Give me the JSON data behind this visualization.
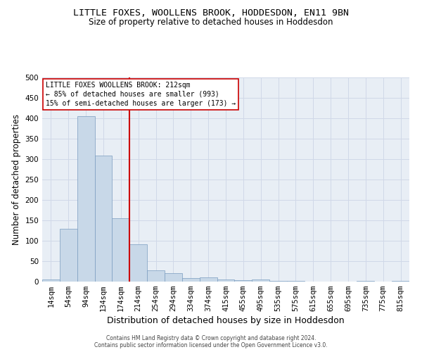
{
  "title": "LITTLE FOXES, WOOLLENS BROOK, HODDESDON, EN11 9BN",
  "subtitle": "Size of property relative to detached houses in Hoddesdon",
  "xlabel": "Distribution of detached houses by size in Hoddesdon",
  "ylabel": "Number of detached properties",
  "footer1": "Contains HM Land Registry data © Crown copyright and database right 2024.",
  "footer2": "Contains public sector information licensed under the Open Government Licence v3.0.",
  "bar_labels": [
    "14sqm",
    "54sqm",
    "94sqm",
    "134sqm",
    "174sqm",
    "214sqm",
    "254sqm",
    "294sqm",
    "334sqm",
    "374sqm",
    "415sqm",
    "455sqm",
    "495sqm",
    "535sqm",
    "575sqm",
    "615sqm",
    "655sqm",
    "695sqm",
    "735sqm",
    "775sqm",
    "815sqm"
  ],
  "bar_values": [
    5,
    130,
    405,
    308,
    155,
    92,
    28,
    20,
    8,
    10,
    5,
    4,
    5,
    1,
    1,
    0,
    0,
    0,
    1,
    0,
    1
  ],
  "bar_color": "#c8d8e8",
  "bar_edge_color": "#7a9cbf",
  "grid_color": "#d0d8e8",
  "bg_color": "#e8eef5",
  "ylim": [
    0,
    500
  ],
  "yticks": [
    0,
    50,
    100,
    150,
    200,
    250,
    300,
    350,
    400,
    450,
    500
  ],
  "property_line_x": 4,
  "property_line_color": "#cc0000",
  "legend_title": "LITTLE FOXES WOOLLENS BROOK: 212sqm",
  "legend_line1": "← 85% of detached houses are smaller (993)",
  "legend_line2": "15% of semi-detached houses are larger (173) →",
  "legend_box_color": "#cc0000",
  "title_fontsize": 9.5,
  "subtitle_fontsize": 8.5,
  "axis_label_fontsize": 8.5,
  "tick_fontsize": 7.5,
  "legend_fontsize": 7,
  "footer_fontsize": 5.5
}
